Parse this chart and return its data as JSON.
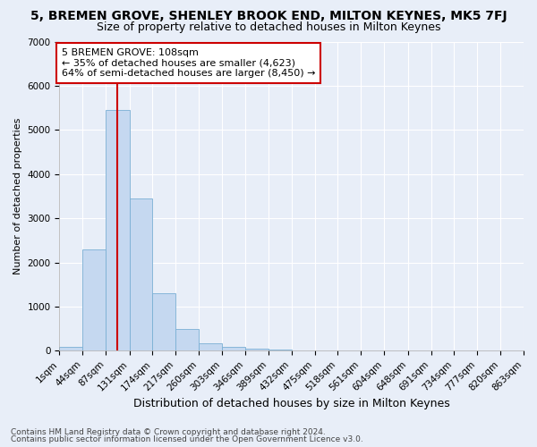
{
  "title": "5, BREMEN GROVE, SHENLEY BROOK END, MILTON KEYNES, MK5 7FJ",
  "subtitle": "Size of property relative to detached houses in Milton Keynes",
  "xlabel": "Distribution of detached houses by size in Milton Keynes",
  "ylabel": "Number of detached properties",
  "bin_edges": [
    1,
    44,
    87,
    131,
    174,
    217,
    260,
    303,
    346,
    389,
    432,
    475,
    518,
    561,
    604,
    648,
    691,
    734,
    777,
    820,
    863
  ],
  "bar_heights": [
    90,
    2290,
    5460,
    3440,
    1295,
    490,
    175,
    90,
    55,
    20,
    10,
    5,
    3,
    2,
    1,
    1,
    1,
    0,
    0,
    0
  ],
  "bar_color": "#c5d8f0",
  "bar_edge_color": "#7aafd4",
  "vline_x": 108,
  "vline_color": "#cc0000",
  "annotation_text": "5 BREMEN GROVE: 108sqm\n← 35% of detached houses are smaller (4,623)\n64% of semi-detached houses are larger (8,450) →",
  "annotation_box_color": "#ffffff",
  "annotation_box_edge": "#cc0000",
  "ylim": [
    0,
    7000
  ],
  "yticks": [
    0,
    1000,
    2000,
    3000,
    4000,
    5000,
    6000,
    7000
  ],
  "background_color": "#e8eef8",
  "axes_background": "#e8eef8",
  "footer_line1": "Contains HM Land Registry data © Crown copyright and database right 2024.",
  "footer_line2": "Contains public sector information licensed under the Open Government Licence v3.0.",
  "title_fontsize": 10,
  "subtitle_fontsize": 9,
  "xlabel_fontsize": 9,
  "ylabel_fontsize": 8,
  "tick_fontsize": 7.5,
  "annotation_fontsize": 8,
  "footer_fontsize": 6.5
}
